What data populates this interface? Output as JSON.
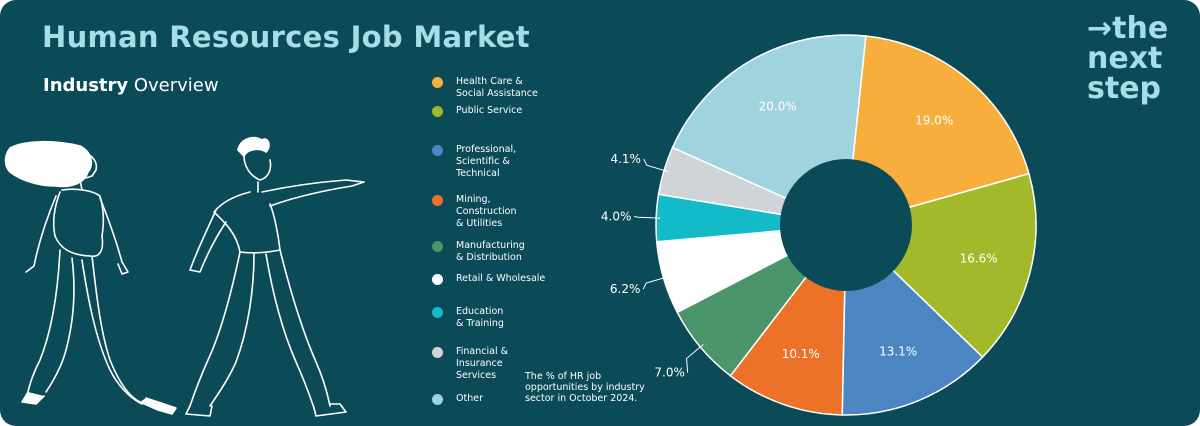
{
  "header": {
    "title": "Human Resources Job Market",
    "subtitle_bold": "Industry",
    "subtitle_rest": " Overview"
  },
  "logo": {
    "arrow": "→",
    "line1": "the",
    "line2": "next",
    "line3": "step"
  },
  "note": "The % of HR job opportunities by industry sector in October 2024.",
  "chart_data": {
    "type": "pie",
    "donut": true,
    "legend_placement": "left",
    "slices": [
      {
        "label": "Health Care & Social Assistance",
        "value": 19.0,
        "display": "19.0%",
        "color": "#f8ae3d"
      },
      {
        "label": "Public Service",
        "value": 16.6,
        "display": "16.6%",
        "color": "#a3b92c"
      },
      {
        "label": "Professional, Scientific & Technical",
        "value": 13.1,
        "display": "13.1%",
        "color": "#4b86c3"
      },
      {
        "label": "Mining, Construction & Utilities",
        "value": 10.1,
        "display": "10.1%",
        "color": "#eb7228"
      },
      {
        "label": "Manufacturing & Distribution",
        "value": 7.0,
        "display": "7.0%",
        "color": "#4a956a"
      },
      {
        "label": "Retail & Wholesale",
        "value": 6.2,
        "display": "6.2%",
        "color": "#ffffff"
      },
      {
        "label": "Education & Training",
        "value": 4.0,
        "display": "4.0%",
        "color": "#13bbc8"
      },
      {
        "label": "Financial & Insurance Services",
        "value": 4.1,
        "display": "4.1%",
        "color": "#d0d4d8"
      },
      {
        "label": "Other",
        "value": 20.0,
        "display": "20.0%",
        "color": "#9fd4de"
      }
    ]
  }
}
